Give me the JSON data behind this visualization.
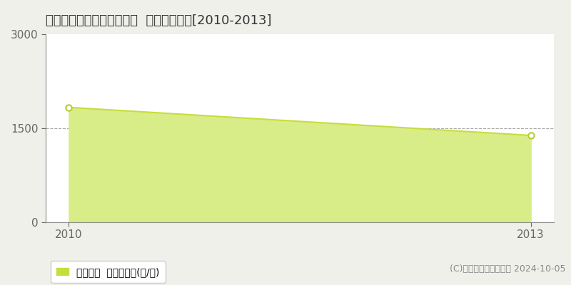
{
  "title": "会津若松市北会津町東麻生  農地価格推移[2010-2013]",
  "years": [
    2010,
    2013
  ],
  "values": [
    1833,
    1386
  ],
  "ylim": [
    0,
    3000
  ],
  "yticks": [
    0,
    1500,
    3000
  ],
  "xticks": [
    2010,
    2013
  ],
  "line_color": "#c8dc3c",
  "fill_color": "#d8ed88",
  "marker_color": "white",
  "marker_edgecolor": "#b8cc2c",
  "grid_color": "#aaaaaa",
  "bg_color": "#f0f0eb",
  "plot_bg_color": "#ffffff",
  "legend_label": "農地価格  平均坤単価(円/坤)",
  "legend_marker_color": "#c8dc3c",
  "copyright_text": "(C)土地価格ドットコム 2024-10-05",
  "title_fontsize": 13,
  "axis_fontsize": 11,
  "legend_fontsize": 10,
  "copyright_fontsize": 9
}
